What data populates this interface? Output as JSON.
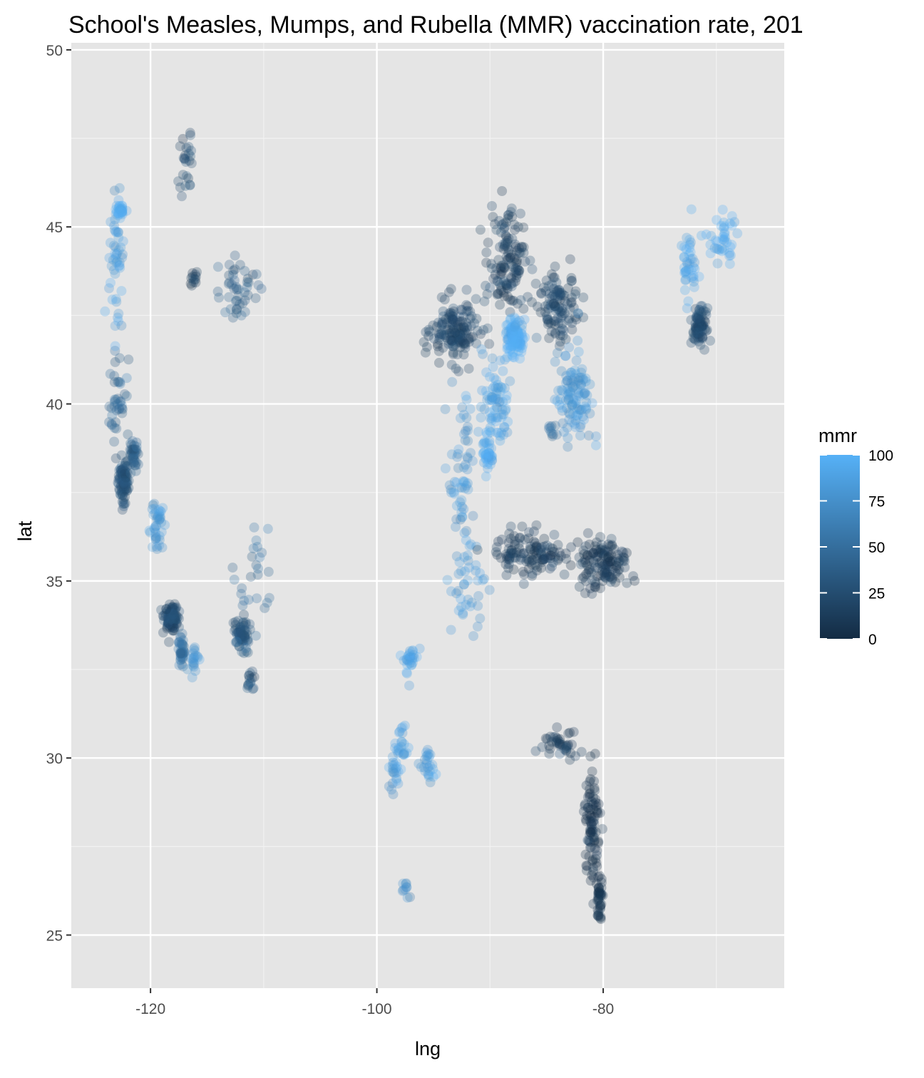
{
  "chart_data": {
    "type": "scatter",
    "title": "School's Measles, Mumps, and Rubella (MMR) vaccination rate, 201",
    "xlabel": "lng",
    "ylabel": "lat",
    "xlim": [
      -127,
      -64
    ],
    "ylim": [
      23.5,
      50.2
    ],
    "x_ticks": [
      -120,
      -100,
      -80
    ],
    "x_tick_labels": [
      "-120",
      "-100",
      "-80"
    ],
    "y_ticks": [
      25,
      30,
      35,
      40,
      45,
      50
    ],
    "y_tick_labels": [
      "25",
      "30",
      "35",
      "40",
      "45",
      "50"
    ],
    "grid": true,
    "point_alpha_note": "semi-transparent points",
    "legend": {
      "title": "mmr",
      "position": "right",
      "breaks": [
        0,
        25,
        50,
        75,
        100
      ],
      "break_labels": [
        "0",
        "25",
        "50",
        "75",
        "100"
      ],
      "color_low": "#132b43",
      "color_high": "#56b1f7"
    },
    "colors": {
      "panel_background": "#e5e5e5",
      "grid_major": "#ffffff",
      "grid_minor": "#f2f2f2"
    },
    "clusters": [
      {
        "lng": -122.4,
        "lat": 37.8,
        "sx": 0.4,
        "sy": 0.5,
        "n": 90,
        "mmr": 30
      },
      {
        "lng": -121.5,
        "lat": 38.6,
        "sx": 0.4,
        "sy": 0.4,
        "n": 40,
        "mmr": 40
      },
      {
        "lng": -122.8,
        "lat": 40.0,
        "sx": 0.7,
        "sy": 1.2,
        "n": 40,
        "mmr": 45
      },
      {
        "lng": -123.0,
        "lat": 44.0,
        "sx": 0.5,
        "sy": 1.5,
        "n": 50,
        "mmr": 85
      },
      {
        "lng": -122.7,
        "lat": 45.5,
        "sx": 0.3,
        "sy": 0.2,
        "n": 30,
        "mmr": 97
      },
      {
        "lng": -119.5,
        "lat": 36.5,
        "sx": 0.6,
        "sy": 0.6,
        "n": 40,
        "mmr": 80
      },
      {
        "lng": -118.2,
        "lat": 34.0,
        "sx": 0.5,
        "sy": 0.3,
        "n": 110,
        "mmr": 25
      },
      {
        "lng": -117.2,
        "lat": 33.0,
        "sx": 0.3,
        "sy": 0.4,
        "n": 40,
        "mmr": 55
      },
      {
        "lng": -116.3,
        "lat": 32.8,
        "sx": 0.6,
        "sy": 0.3,
        "n": 20,
        "mmr": 80
      },
      {
        "lng": -116.2,
        "lat": 43.6,
        "sx": 0.3,
        "sy": 0.2,
        "n": 12,
        "mmr": 15
      },
      {
        "lng": -116.8,
        "lat": 47.0,
        "sx": 0.5,
        "sy": 1.0,
        "n": 25,
        "mmr": 25
      },
      {
        "lng": -112.3,
        "lat": 43.2,
        "sx": 1.5,
        "sy": 0.7,
        "n": 45,
        "mmr": 35
      },
      {
        "lng": -112.0,
        "lat": 33.5,
        "sx": 0.5,
        "sy": 0.4,
        "n": 60,
        "mmr": 30
      },
      {
        "lng": -111.2,
        "lat": 32.2,
        "sx": 0.3,
        "sy": 0.3,
        "n": 15,
        "mmr": 35
      },
      {
        "lng": -111.0,
        "lat": 35.0,
        "sx": 1.5,
        "sy": 1.5,
        "n": 30,
        "mmr": 50
      },
      {
        "lng": -97.0,
        "lat": 32.8,
        "sx": 0.5,
        "sy": 0.4,
        "n": 30,
        "mmr": 90
      },
      {
        "lng": -97.8,
        "lat": 30.3,
        "sx": 0.6,
        "sy": 0.6,
        "n": 25,
        "mmr": 88
      },
      {
        "lng": -95.4,
        "lat": 29.8,
        "sx": 0.4,
        "sy": 0.4,
        "n": 25,
        "mmr": 85
      },
      {
        "lng": -98.5,
        "lat": 29.5,
        "sx": 0.4,
        "sy": 0.4,
        "n": 20,
        "mmr": 85
      },
      {
        "lng": -97.5,
        "lat": 26.3,
        "sx": 0.3,
        "sy": 0.3,
        "n": 10,
        "mmr": 80
      },
      {
        "lng": -93.0,
        "lat": 42.0,
        "sx": 1.8,
        "sy": 0.7,
        "n": 150,
        "mmr": 20
      },
      {
        "lng": -88.5,
        "lat": 44.0,
        "sx": 1.3,
        "sy": 1.2,
        "n": 130,
        "mmr": 15
      },
      {
        "lng": -87.8,
        "lat": 41.9,
        "sx": 0.7,
        "sy": 0.4,
        "n": 120,
        "mmr": 100
      },
      {
        "lng": -89.5,
        "lat": 40.0,
        "sx": 1.0,
        "sy": 1.2,
        "n": 80,
        "mmr": 90
      },
      {
        "lng": -90.2,
        "lat": 38.6,
        "sx": 0.4,
        "sy": 0.4,
        "n": 35,
        "mmr": 95
      },
      {
        "lng": -92.5,
        "lat": 38.0,
        "sx": 1.0,
        "sy": 2.0,
        "n": 60,
        "mmr": 80
      },
      {
        "lng": -92.0,
        "lat": 34.8,
        "sx": 1.2,
        "sy": 1.2,
        "n": 40,
        "mmr": 85
      },
      {
        "lng": -84.0,
        "lat": 42.7,
        "sx": 1.5,
        "sy": 0.7,
        "n": 110,
        "mmr": 20
      },
      {
        "lng": -82.5,
        "lat": 40.2,
        "sx": 1.3,
        "sy": 1.1,
        "n": 110,
        "mmr": 80
      },
      {
        "lng": -84.5,
        "lat": 39.2,
        "sx": 0.3,
        "sy": 0.2,
        "n": 10,
        "mmr": 50
      },
      {
        "lng": -86.5,
        "lat": 35.8,
        "sx": 2.5,
        "sy": 0.5,
        "n": 120,
        "mmr": 15
      },
      {
        "lng": -80.0,
        "lat": 35.5,
        "sx": 2.0,
        "sy": 0.6,
        "n": 130,
        "mmr": 10
      },
      {
        "lng": -81.0,
        "lat": 28.0,
        "sx": 0.6,
        "sy": 1.3,
        "n": 90,
        "mmr": 5
      },
      {
        "lng": -80.3,
        "lat": 26.0,
        "sx": 0.2,
        "sy": 0.5,
        "n": 40,
        "mmr": 5
      },
      {
        "lng": -83.5,
        "lat": 30.4,
        "sx": 1.5,
        "sy": 0.3,
        "n": 40,
        "mmr": 15
      },
      {
        "lng": -71.5,
        "lat": 42.2,
        "sx": 0.5,
        "sy": 0.4,
        "n": 80,
        "mmr": 25
      },
      {
        "lng": -72.5,
        "lat": 44.0,
        "sx": 0.6,
        "sy": 0.9,
        "n": 40,
        "mmr": 90
      },
      {
        "lng": -69.5,
        "lat": 44.6,
        "sx": 1.0,
        "sy": 0.7,
        "n": 40,
        "mmr": 95
      }
    ]
  }
}
